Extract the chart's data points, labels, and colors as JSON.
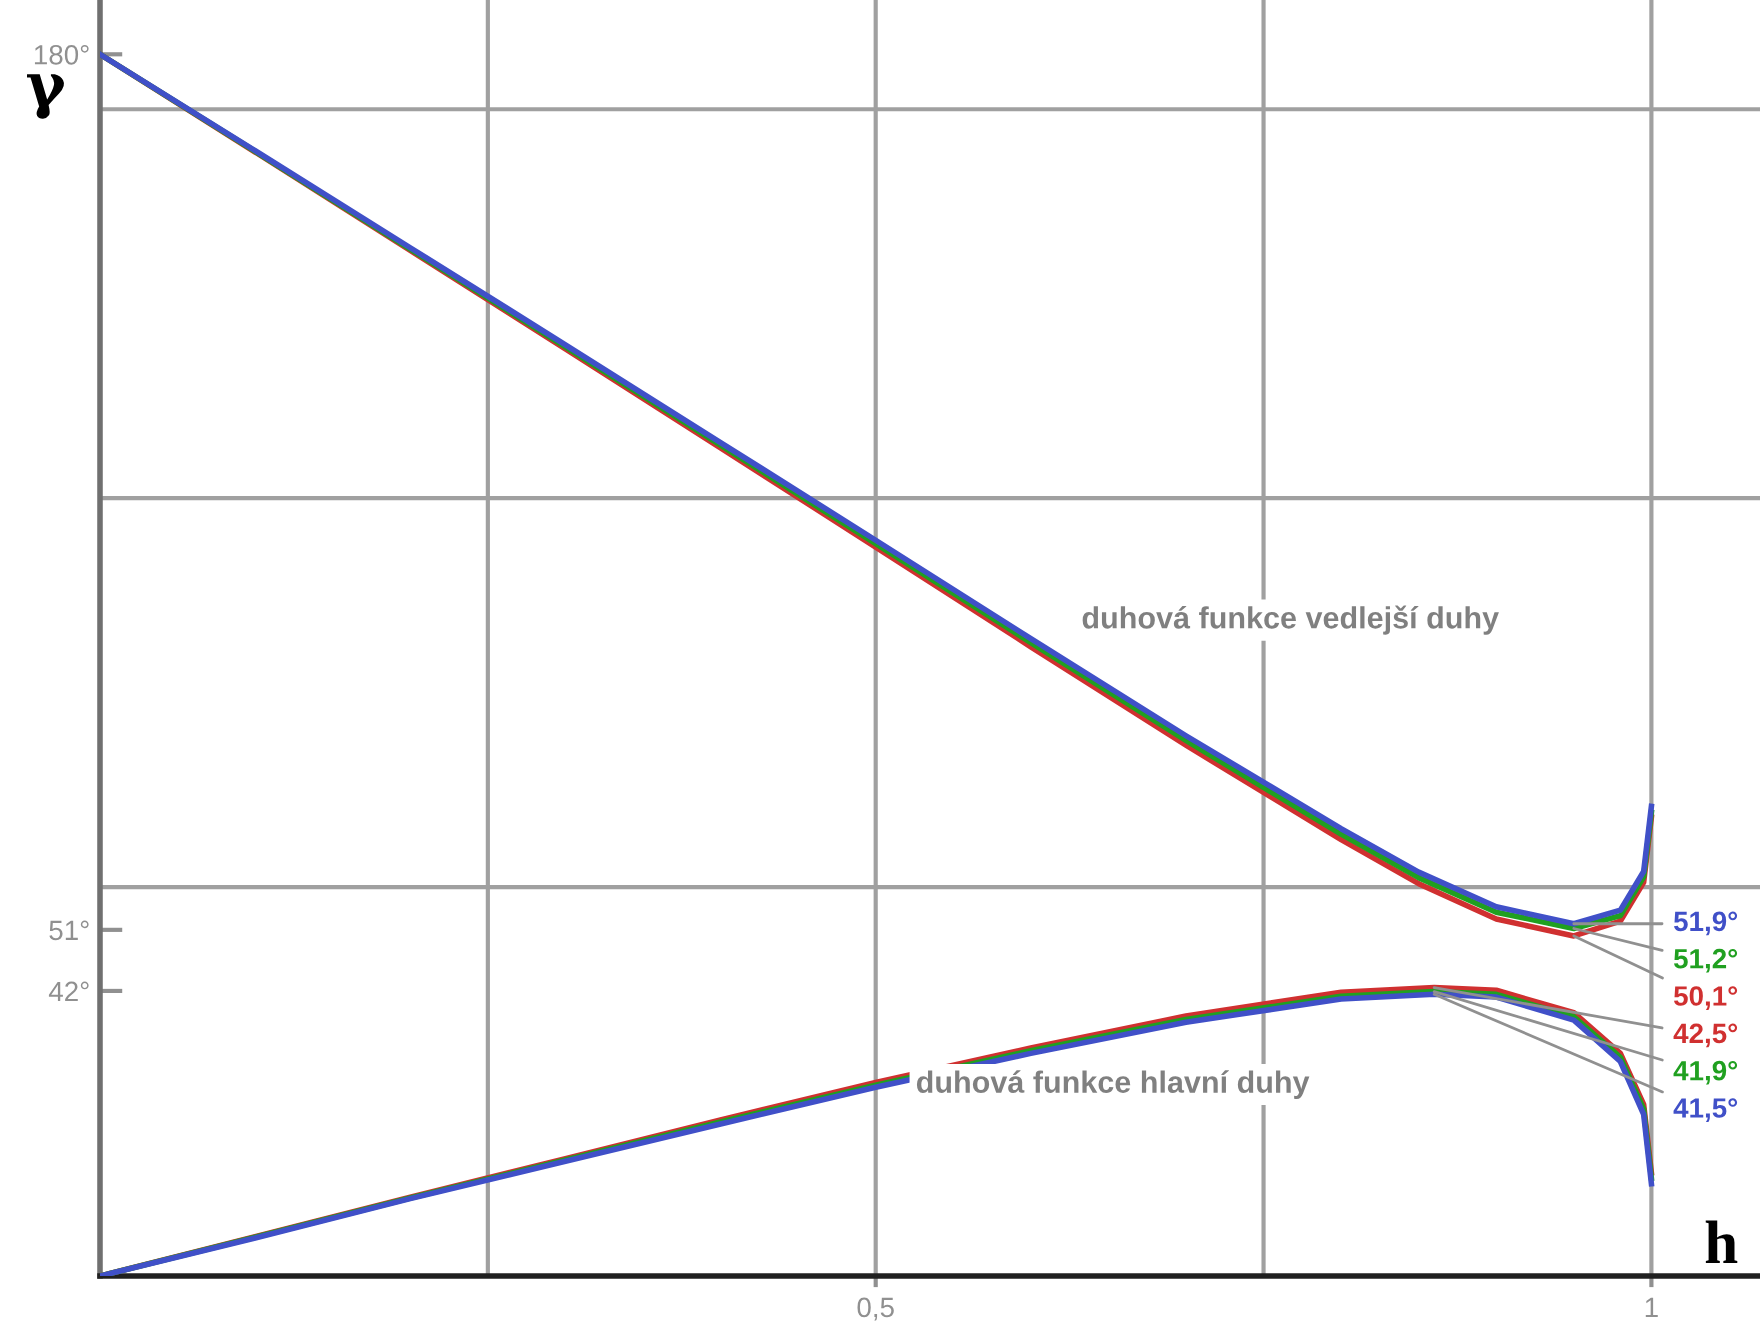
{
  "chart_data": {
    "type": "line",
    "xlabel": "h",
    "ylabel": "γ",
    "xlim": [
      0,
      1.07
    ],
    "ylim": [
      0,
      188
    ],
    "xticks": [
      {
        "value": 0.5,
        "label": "0,5"
      },
      1
    ],
    "yticks": [
      {
        "value": 42,
        "label": "42°"
      },
      {
        "value": 51,
        "label": "51°"
      },
      {
        "value": 180,
        "label": "180°"
      }
    ],
    "ref_lines": [
      {
        "axis": "x",
        "value": 0.25,
        "color": "#a0a0a0"
      },
      {
        "axis": "x",
        "value": 0.5,
        "color": "#a0a0a0"
      },
      {
        "axis": "x",
        "value": 0.75,
        "color": "#a0a0a0"
      },
      {
        "axis": "x",
        "value": 1,
        "color": "#a0a0a0"
      },
      {
        "axis": "y",
        "value": 57.3,
        "color": "#a0a0a0"
      },
      {
        "axis": "y",
        "value": 114.6,
        "color": "#a0a0a0"
      },
      {
        "axis": "y",
        "value": 171.9,
        "color": "#a0a0a0"
      }
    ],
    "annotations": [
      "duhová funkce vedlejší duhy",
      "duhová funkce hlavní duhy"
    ],
    "series": [
      {
        "color": "#d03030",
        "x": [
          0,
          0.1,
          0.2,
          0.3,
          0.4,
          0.5,
          0.6,
          0.7,
          0.8,
          0.85,
          0.9,
          0.95,
          0.98,
          0.995,
          1
        ],
        "values": [
          180,
          165.6,
          151.1,
          136.6,
          122.0,
          107.4,
          92.7,
          78.2,
          64.3,
          57.8,
          52.6,
          50.1,
          52.3,
          58.0,
          67.6
        ],
        "value_labels": [
          null,
          null,
          null,
          null,
          null,
          null,
          null,
          null,
          null,
          null,
          null,
          "50,1°",
          null,
          null,
          null
        ]
      },
      {
        "color": "#20a020",
        "x": [
          0,
          0.1,
          0.2,
          0.3,
          0.4,
          0.5,
          0.6,
          0.7,
          0.8,
          0.85,
          0.9,
          0.95,
          0.98,
          0.995,
          1
        ],
        "values": [
          180,
          165.7,
          151.3,
          136.9,
          122.4,
          107.9,
          93.3,
          78.9,
          65.1,
          58.7,
          53.6,
          51.2,
          53.1,
          58.8,
          68.3
        ],
        "value_labels": [
          null,
          null,
          null,
          null,
          null,
          null,
          null,
          null,
          null,
          null,
          null,
          "51,2°",
          null,
          null,
          null
        ]
      },
      {
        "color": "#4050c8",
        "x": [
          0,
          0.1,
          0.2,
          0.3,
          0.4,
          0.5,
          0.6,
          0.7,
          0.8,
          0.85,
          0.9,
          0.95,
          0.98,
          0.995,
          1
        ],
        "values": [
          180,
          165.8,
          151.5,
          137.2,
          122.8,
          108.4,
          93.9,
          79.6,
          65.9,
          59.5,
          54.4,
          51.9,
          53.9,
          59.6,
          69.2
        ],
        "value_labels": [
          null,
          null,
          null,
          null,
          null,
          null,
          null,
          null,
          null,
          null,
          null,
          "51,9°",
          null,
          null,
          null
        ]
      },
      {
        "color": "#d03030",
        "x": [
          0,
          0.1,
          0.2,
          0.3,
          0.4,
          0.5,
          0.6,
          0.7,
          0.8,
          0.86,
          0.9,
          0.95,
          0.98,
          0.995,
          1
        ],
        "values": [
          0,
          5.8,
          11.6,
          17.3,
          23.0,
          28.5,
          33.6,
          38.3,
          41.8,
          42.5,
          42.1,
          38.8,
          32.8,
          25.3,
          15.2
        ],
        "value_labels": [
          null,
          null,
          null,
          null,
          null,
          null,
          null,
          null,
          null,
          "42,5°",
          null,
          null,
          null,
          null,
          null
        ]
      },
      {
        "color": "#20a020",
        "x": [
          0,
          0.1,
          0.2,
          0.3,
          0.4,
          0.5,
          0.6,
          0.7,
          0.8,
          0.86,
          0.9,
          0.95,
          0.98,
          0.995,
          1
        ],
        "values": [
          0,
          5.7,
          11.5,
          17.1,
          22.7,
          28.1,
          33.2,
          37.8,
          41.2,
          41.9,
          41.5,
          38.2,
          32.2,
          24.6,
          14.4
        ],
        "value_labels": [
          null,
          null,
          null,
          null,
          null,
          null,
          null,
          null,
          null,
          "41,9°",
          null,
          null,
          null,
          null,
          null
        ]
      },
      {
        "color": "#4050c8",
        "x": [
          0,
          0.1,
          0.2,
          0.3,
          0.4,
          0.5,
          0.6,
          0.7,
          0.8,
          0.86,
          0.9,
          0.95,
          0.98,
          0.995,
          1
        ],
        "values": [
          0,
          5.6,
          11.4,
          16.9,
          22.4,
          27.8,
          32.8,
          37.4,
          40.8,
          41.5,
          41.1,
          37.7,
          31.6,
          23.8,
          13.6
        ],
        "value_labels": [
          null,
          null,
          null,
          null,
          null,
          null,
          null,
          null,
          null,
          "41,5°",
          null,
          null,
          null,
          null,
          null
        ]
      }
    ]
  }
}
